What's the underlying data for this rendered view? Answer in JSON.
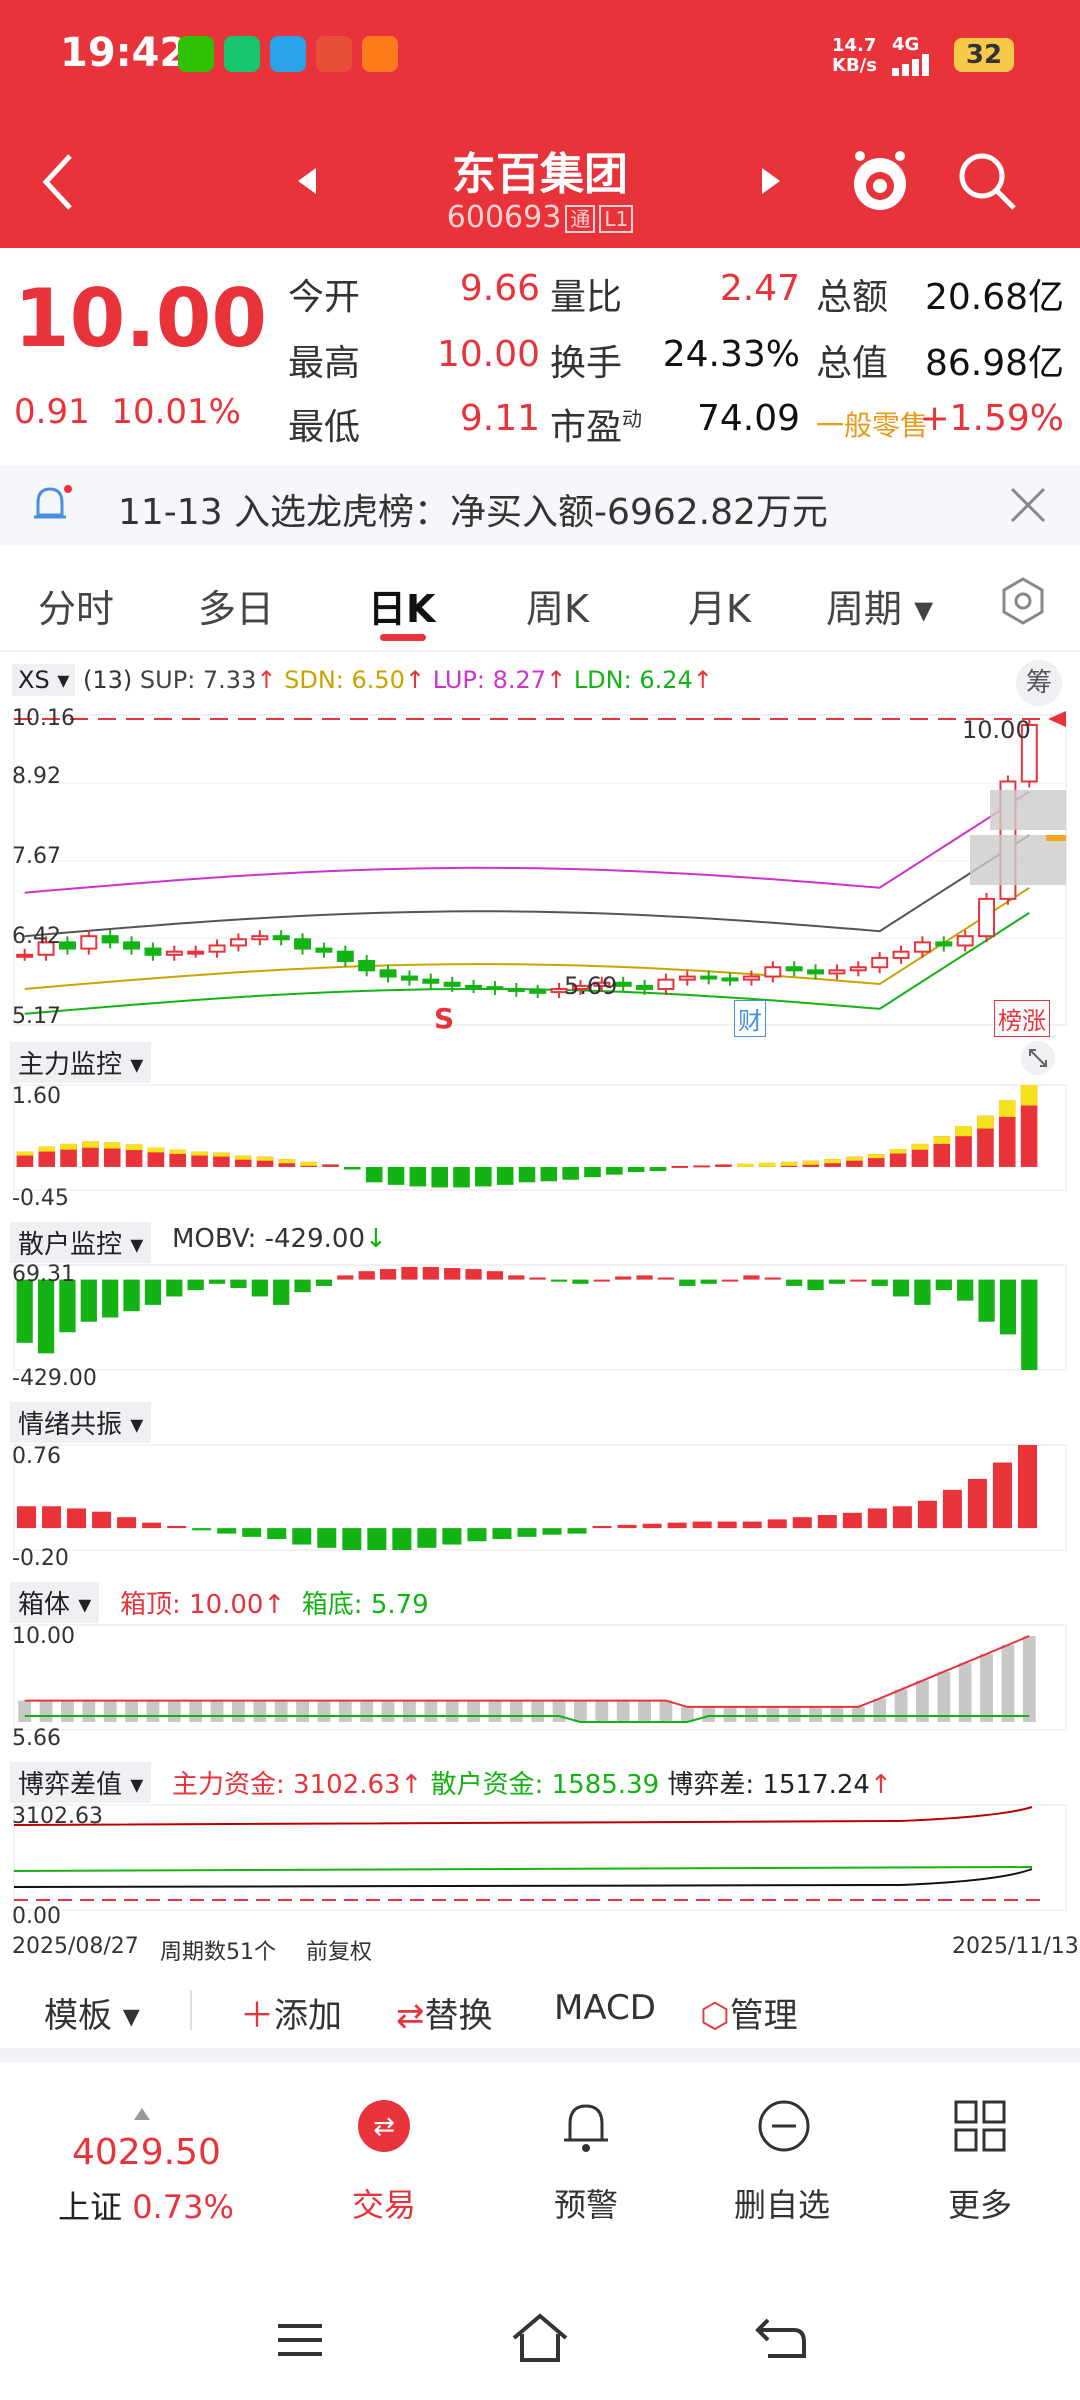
{
  "status_bar": {
    "time": "19:42",
    "net_speed": "14.7\nKB/s",
    "net_type": "4G",
    "battery": "32"
  },
  "nav": {
    "title": "东百集团",
    "code": "600693",
    "tag1": "通",
    "tag2": "L1"
  },
  "quote": {
    "price": "10.00",
    "change": "0.91",
    "change_pct": "10.01%",
    "rows": [
      [
        {
          "label": "今开",
          "value": "9.66",
          "color": "red"
        },
        {
          "label": "量比",
          "value": "2.47",
          "color": "red"
        },
        {
          "label": "总额",
          "value": "20.68亿",
          "color": "black"
        }
      ],
      [
        {
          "label": "最高",
          "value": "10.00",
          "color": "red"
        },
        {
          "label": "换手",
          "value": "24.33%",
          "color": "black"
        },
        {
          "label": "总值",
          "value": "86.98亿",
          "color": "black"
        }
      ],
      [
        {
          "label": "最低",
          "value": "9.11",
          "color": "red"
        },
        {
          "label": "市盈",
          "sup": "动",
          "value": "74.09",
          "color": "black"
        },
        {
          "label": "一般零售",
          "value": "+1.59%",
          "color": "red"
        }
      ]
    ]
  },
  "notice": {
    "text": "11-13 入选龙虎榜：净买入额-6962.82万元"
  },
  "tabs": [
    "分时",
    "多日",
    "日K",
    "周K",
    "月K",
    "周期"
  ],
  "active_tab": "日K",
  "kline": {
    "indicator": "XS",
    "params": "(13)",
    "sup": "SUP: 7.33",
    "sdn": "SDN: 6.50",
    "lup": "LUP: 8.27",
    "ldn": "LDN: 6.24",
    "chip_btn": "筹",
    "y_labels": [
      "10.16",
      "8.92",
      "7.67",
      "6.42",
      "5.17"
    ],
    "high_label": "10.00",
    "low_label": "5.69",
    "mark_s": "S",
    "mark_cai": "财",
    "mark_bang": "榜涨",
    "closes": [
      6.3,
      6.5,
      6.4,
      6.6,
      6.5,
      6.4,
      6.3,
      6.35,
      6.35,
      6.45,
      6.55,
      6.6,
      6.55,
      6.4,
      6.35,
      6.2,
      6.05,
      5.95,
      5.9,
      5.85,
      5.8,
      5.78,
      5.75,
      5.72,
      5.7,
      5.75,
      5.8,
      5.85,
      5.8,
      5.75,
      5.9,
      5.95,
      5.92,
      5.9,
      5.95,
      6.1,
      6.05,
      6.0,
      6.05,
      6.1,
      6.25,
      6.35,
      6.5,
      6.45,
      6.6,
      7.2,
      9.09,
      10.0
    ]
  },
  "zljk": {
    "label": "主力监控",
    "max": "1.60",
    "min": "-0.45",
    "values": [
      0.3,
      0.4,
      0.45,
      0.5,
      0.48,
      0.44,
      0.38,
      0.34,
      0.3,
      0.28,
      0.22,
      0.2,
      0.15,
      0.1,
      0.05,
      -0.05,
      -0.3,
      -0.35,
      -0.38,
      -0.4,
      -0.4,
      -0.38,
      -0.35,
      -0.3,
      -0.28,
      -0.25,
      -0.2,
      -0.15,
      -0.1,
      -0.08,
      0.02,
      0.03,
      0.05,
      0.06,
      0.08,
      0.1,
      0.12,
      0.15,
      0.2,
      0.25,
      0.35,
      0.45,
      0.6,
      0.8,
      1.0,
      1.3,
      1.6
    ]
  },
  "shjk": {
    "label": "散户监控",
    "mobv": "MOBV: -429.00",
    "max": "69.31",
    "min": "-429.00",
    "values": [
      -300,
      -350,
      -250,
      -200,
      -180,
      -150,
      -120,
      -80,
      -50,
      -20,
      -40,
      -80,
      -120,
      -60,
      -30,
      20,
      40,
      50,
      60,
      60,
      55,
      50,
      40,
      20,
      10,
      -10,
      -20,
      0,
      15,
      20,
      10,
      -30,
      -20,
      0,
      20,
      10,
      -30,
      -50,
      -20,
      0,
      -30,
      -80,
      -120,
      -50,
      -100,
      -200,
      -260,
      -429
    ]
  },
  "qxgz": {
    "label": "情绪共振",
    "max": "0.76",
    "min": "-0.20",
    "values": [
      0.2,
      0.2,
      0.18,
      0.15,
      0.1,
      0.05,
      0.02,
      -0.02,
      -0.05,
      -0.08,
      -0.1,
      -0.15,
      -0.18,
      -0.2,
      -0.2,
      -0.2,
      -0.18,
      -0.15,
      -0.12,
      -0.1,
      -0.08,
      -0.06,
      -0.05,
      0.02,
      0.03,
      0.04,
      0.05,
      0.06,
      0.06,
      0.06,
      0.08,
      0.1,
      0.12,
      0.14,
      0.18,
      0.2,
      0.25,
      0.35,
      0.45,
      0.6,
      0.76
    ]
  },
  "xt": {
    "label": "箱体",
    "top": "箱顶: 10.00",
    "bottom": "箱底: 5.79",
    "max": "10.00",
    "min": "5.66"
  },
  "byc": {
    "label": "博弈差值",
    "zl": "主力资金: 3102.63",
    "sh": "散户资金: 1585.39",
    "diff": "博弈差: 1517.24",
    "max": "3102.63",
    "min": "0.00"
  },
  "axis": {
    "start": "2025/08/27",
    "period": "周期数51个",
    "fq": "前复权",
    "end": "2025/11/13"
  },
  "toolbar": {
    "template": "模板",
    "add": "添加",
    "replace": "替换",
    "macd": "MACD",
    "manage": "管理"
  },
  "bottom_nav": {
    "index_value": "4029.50",
    "index_name": "上证",
    "index_pct": "0.73%",
    "trade": "交易",
    "alert": "预警",
    "delete": "删自选",
    "more": "更多"
  },
  "colors": {
    "red": "#e8333a",
    "green": "#14b314",
    "yellow": "#f5e11e",
    "magenta": "#cc33cc"
  }
}
